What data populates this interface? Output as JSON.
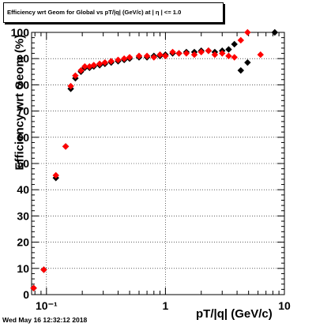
{
  "chart_data": {
    "type": "scatter",
    "title": "Efficiency wrt Geom for Global vs pT/|q| (GeV/c) at | η | <= 1.0",
    "xlabel": "pT/|q| (GeV/c)",
    "ylabel": "Efficiency wrt Geom (%)",
    "x_scale": "log",
    "xlim": [
      0.075,
      10
    ],
    "ylim": [
      0,
      100
    ],
    "x_major_ticks": [
      0.1,
      1,
      10
    ],
    "x_tick_labels": [
      "10⁻¹",
      "1",
      "10"
    ],
    "y_ticks": [
      0,
      10,
      20,
      30,
      40,
      50,
      60,
      70,
      80,
      90,
      100
    ],
    "y_tick_labels": [
      "0",
      "10",
      "20",
      "30",
      "40",
      "50",
      "60",
      "70",
      "80",
      "90",
      "100"
    ],
    "grid": true,
    "legend": "none",
    "series": [
      {
        "color": "#000000",
        "marker": "diamond",
        "points": [
          {
            "x": 0.078,
            "y": 2.5
          },
          {
            "x": 0.095,
            "y": 9.5
          },
          {
            "x": 0.12,
            "y": 44.5
          },
          {
            "x": 0.145,
            "y": 56.5
          },
          {
            "x": 0.16,
            "y": 78.5
          },
          {
            "x": 0.175,
            "y": 82.5
          },
          {
            "x": 0.195,
            "y": 85
          },
          {
            "x": 0.21,
            "y": 86.5
          },
          {
            "x": 0.23,
            "y": 86.5
          },
          {
            "x": 0.25,
            "y": 87
          },
          {
            "x": 0.28,
            "y": 87.5
          },
          {
            "x": 0.31,
            "y": 88
          },
          {
            "x": 0.35,
            "y": 88.5
          },
          {
            "x": 0.4,
            "y": 89
          },
          {
            "x": 0.45,
            "y": 89.5
          },
          {
            "x": 0.5,
            "y": 90
          },
          {
            "x": 0.6,
            "y": 90.5
          },
          {
            "x": 0.7,
            "y": 90.5
          },
          {
            "x": 0.8,
            "y": 91
          },
          {
            "x": 0.9,
            "y": 91
          },
          {
            "x": 1.0,
            "y": 91.5
          },
          {
            "x": 1.15,
            "y": 92
          },
          {
            "x": 1.3,
            "y": 92
          },
          {
            "x": 1.5,
            "y": 92.5
          },
          {
            "x": 1.75,
            "y": 92.5
          },
          {
            "x": 2.0,
            "y": 93
          },
          {
            "x": 2.3,
            "y": 93
          },
          {
            "x": 2.6,
            "y": 92.5
          },
          {
            "x": 3.0,
            "y": 93
          },
          {
            "x": 3.4,
            "y": 93.5
          },
          {
            "x": 3.8,
            "y": 95.5
          },
          {
            "x": 4.3,
            "y": 85.5
          },
          {
            "x": 4.9,
            "y": 88.5
          },
          {
            "x": 8.3,
            "y": 100
          }
        ]
      },
      {
        "color": "#ff0000",
        "marker": "diamond",
        "points": [
          {
            "x": 0.078,
            "y": 2.5
          },
          {
            "x": 0.095,
            "y": 9.5
          },
          {
            "x": 0.12,
            "y": 45.5
          },
          {
            "x": 0.145,
            "y": 56.5
          },
          {
            "x": 0.16,
            "y": 79.5
          },
          {
            "x": 0.175,
            "y": 83.5
          },
          {
            "x": 0.195,
            "y": 85.5
          },
          {
            "x": 0.21,
            "y": 87
          },
          {
            "x": 0.23,
            "y": 87
          },
          {
            "x": 0.25,
            "y": 87.5
          },
          {
            "x": 0.28,
            "y": 88
          },
          {
            "x": 0.31,
            "y": 88.5
          },
          {
            "x": 0.35,
            "y": 89
          },
          {
            "x": 0.4,
            "y": 89.5
          },
          {
            "x": 0.45,
            "y": 90
          },
          {
            "x": 0.5,
            "y": 90.5
          },
          {
            "x": 0.6,
            "y": 91
          },
          {
            "x": 0.7,
            "y": 91
          },
          {
            "x": 0.8,
            "y": 90.5
          },
          {
            "x": 0.9,
            "y": 91.5
          },
          {
            "x": 1.0,
            "y": 91
          },
          {
            "x": 1.15,
            "y": 92.5
          },
          {
            "x": 1.3,
            "y": 92
          },
          {
            "x": 1.5,
            "y": 92
          },
          {
            "x": 1.75,
            "y": 91.5
          },
          {
            "x": 2.0,
            "y": 92.5
          },
          {
            "x": 2.3,
            "y": 93
          },
          {
            "x": 2.6,
            "y": 91.5
          },
          {
            "x": 3.0,
            "y": 92
          },
          {
            "x": 3.4,
            "y": 91
          },
          {
            "x": 3.8,
            "y": 90.5
          },
          {
            "x": 4.3,
            "y": 97
          },
          {
            "x": 4.9,
            "y": 100
          },
          {
            "x": 6.3,
            "y": 91.5
          }
        ]
      }
    ]
  },
  "footer": {
    "timestamp": "Wed May 16 12:32:12 2018"
  }
}
